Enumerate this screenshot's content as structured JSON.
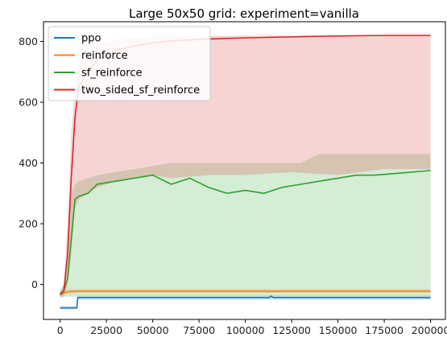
{
  "chart_data": {
    "type": "line",
    "title": "Large 50x50 grid: experiment=vanilla",
    "xlabel": "",
    "ylabel": "",
    "xlim": [
      -9000,
      208000
    ],
    "ylim": [
      -115,
      865
    ],
    "xticks": [
      0,
      25000,
      50000,
      75000,
      100000,
      125000,
      150000,
      175000,
      200000
    ],
    "xtick_labels": [
      "0",
      "25000",
      "50000",
      "75000",
      "100000",
      "125000",
      "150000",
      "175000",
      "200000"
    ],
    "yticks": [
      0,
      200,
      400,
      600,
      800
    ],
    "ytick_labels": [
      "0",
      "200",
      "400",
      "600",
      "800"
    ],
    "grid": false,
    "legend_position": "top-left",
    "series": [
      {
        "name": "ppo",
        "color": "#1f77b4",
        "x": [
          0,
          9000,
          9500,
          20000,
          50000,
          100000,
          113000,
          114000,
          115000,
          150000,
          200000
        ],
        "y": [
          -77,
          -77,
          -43,
          -43,
          -43,
          -43,
          -43,
          -38,
          -43,
          -43,
          -43
        ],
        "band_upper": [
          -70,
          -70,
          -36,
          -36,
          -36,
          -36,
          -36,
          -36,
          -36,
          -36,
          -36
        ],
        "band_lower": [
          -82,
          -82,
          -50,
          -50,
          -50,
          -50,
          -50,
          -50,
          -50,
          -50,
          -50
        ]
      },
      {
        "name": "reinforce",
        "color": "#ff7f0e",
        "x": [
          0,
          2000,
          5000,
          10000,
          20000,
          25000,
          50000,
          100000,
          150000,
          200000
        ],
        "y": [
          -30,
          -27,
          -23,
          -22,
          -22,
          -22,
          -22,
          -22,
          -22,
          -22
        ],
        "band_upper": [
          -25,
          -20,
          -15,
          -15,
          -15,
          -15,
          -15,
          -15,
          -15,
          -15
        ],
        "band_lower": [
          -35,
          -33,
          -30,
          -28,
          -28,
          -28,
          -28,
          -28,
          -28,
          -28
        ]
      },
      {
        "name": "sf_reinforce",
        "color": "#2ca02c",
        "x": [
          0,
          2000,
          4000,
          6000,
          8000,
          10000,
          15000,
          20000,
          30000,
          40000,
          50000,
          60000,
          70000,
          80000,
          90000,
          100000,
          110000,
          120000,
          130000,
          140000,
          150000,
          160000,
          170000,
          180000,
          190000,
          200000
        ],
        "y": [
          -30,
          -20,
          20,
          150,
          280,
          290,
          300,
          330,
          340,
          350,
          360,
          330,
          350,
          320,
          300,
          310,
          300,
          320,
          330,
          340,
          350,
          360,
          360,
          365,
          370,
          375
        ],
        "band_upper": [
          -20,
          0,
          100,
          300,
          330,
          340,
          350,
          360,
          370,
          380,
          390,
          400,
          400,
          400,
          400,
          400,
          400,
          400,
          400,
          430,
          430,
          430,
          430,
          430,
          430,
          430
        ],
        "band_lower": [
          -40,
          -40,
          -40,
          -40,
          -40,
          -40,
          -40,
          -40,
          -40,
          -40,
          -40,
          -40,
          -40,
          -40,
          -40,
          -40,
          -40,
          -40,
          -40,
          -40,
          -40,
          -40,
          -40,
          -40,
          -40,
          -40
        ]
      },
      {
        "name": "two_sided_sf_reinforce",
        "color": "#d62728",
        "x": [
          0,
          2000,
          4000,
          6000,
          8000,
          10000,
          15000,
          20000,
          30000,
          40000,
          50000,
          60000,
          80000,
          100000,
          125000,
          150000,
          175000,
          200000
        ],
        "y": [
          -35,
          -20,
          100,
          350,
          550,
          650,
          700,
          740,
          770,
          785,
          795,
          802,
          808,
          812,
          815,
          818,
          820,
          820
        ],
        "band_upper": [
          -20,
          0,
          200,
          500,
          650,
          720,
          760,
          790,
          805,
          812,
          815,
          817,
          818,
          819,
          820,
          821,
          822,
          822
        ],
        "band_lower": [
          -45,
          -40,
          0,
          100,
          250,
          280,
          300,
          320,
          340,
          350,
          360,
          350,
          360,
          360,
          370,
          360,
          380,
          380
        ]
      }
    ]
  }
}
